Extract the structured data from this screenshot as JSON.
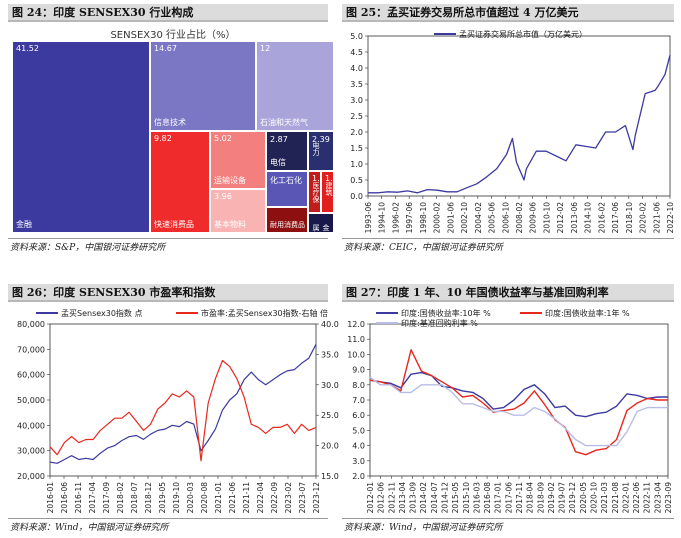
{
  "panels": {
    "p24": {
      "header": "图 24：印度 SENSEX30 行业构成",
      "source": "资料来源：S&P，中国银河证券研究所",
      "chart_data": {
        "type": "treemap",
        "title": "SENSEX30 行业占比（%）",
        "items": [
          {
            "name": "金融",
            "value": "41.52",
            "color": "#3c3a9e"
          },
          {
            "name": "信息技术",
            "value": "14.67",
            "color": "#7b77c4"
          },
          {
            "name": "石油和天然气",
            "value": "12",
            "color": "#a9a5da"
          },
          {
            "name": "快速消费品",
            "value": "9.82",
            "color": "#ef2b2b"
          },
          {
            "name": "运输设备",
            "value": "5.02",
            "color": "#f47f7f"
          },
          {
            "name": "基本物料",
            "value": "3.96",
            "color": "#f9b3b3"
          },
          {
            "name": "电信",
            "value": "2.87",
            "color": "#222355"
          },
          {
            "name": "电力",
            "value": "2.39",
            "color": "#2a2f70"
          },
          {
            "name": "化工石化",
            "value": "",
            "color": "#5a56b5"
          },
          {
            "name": "耐用消费品",
            "value": "",
            "color": "#8e0f0f"
          },
          {
            "name": "医疗保",
            "value": "1…",
            "color": "#c11c1c"
          },
          {
            "name": "建筑",
            "value": "1…",
            "color": "#e21f1f"
          },
          {
            "name": "金属…",
            "value": "",
            "color": "#18184a"
          }
        ]
      }
    },
    "p25": {
      "header": "图 25：孟买证券交易所总市值超过 4 万亿美元",
      "source": "资料来源：CEIC，中国银河证券研究所",
      "chart_data": {
        "type": "line",
        "series": [
          {
            "name": "孟买证券交易所总市值（万亿美元）",
            "color": "#3c3aa0",
            "x": [
              "1993-06",
              "1994-06",
              "1995-06",
              "1996-06",
              "1997-06",
              "1998-06",
              "1999-06",
              "2000-06",
              "2001-06",
              "2002-06",
              "2003-06",
              "2004-06",
              "2005-06",
              "2006-06",
              "2007-06",
              "2008-01",
              "2008-06",
              "2009-03",
              "2009-06",
              "2010-06",
              "2011-06",
              "2012-06",
              "2013-06",
              "2014-06",
              "2015-06",
              "2016-06",
              "2017-06",
              "2018-06",
              "2019-06",
              "2020-03",
              "2020-06",
              "2021-06",
              "2022-06",
              "2022-10",
              "2023-06",
              "2023-12"
            ],
            "values": [
              0.1,
              0.1,
              0.13,
              0.12,
              0.16,
              0.1,
              0.2,
              0.18,
              0.13,
              0.13,
              0.26,
              0.38,
              0.6,
              0.85,
              1.3,
              1.8,
              1.05,
              0.5,
              0.85,
              1.4,
              1.4,
              1.25,
              1.1,
              1.6,
              1.55,
              1.5,
              2.0,
              2.0,
              2.2,
              1.45,
              1.9,
              3.2,
              3.3,
              3.45,
              3.8,
              4.4
            ]
          }
        ],
        "xticks": [
          "1993-06",
          "1994-10",
          "1996-02",
          "1997-06",
          "1998-10",
          "2000-02",
          "2001-06",
          "2002-10",
          "2004-02",
          "2005-06",
          "2006-10",
          "2008-02",
          "2009-06",
          "2010-10",
          "2012-02",
          "2013-06",
          "2014-10",
          "2016-02",
          "2017-06",
          "2018-10",
          "2020-02",
          "2021-06",
          "2022-10"
        ],
        "ylim": [
          0,
          5
        ],
        "yticks": [
          "0.0",
          "0.5",
          "1.0",
          "1.5",
          "2.0",
          "2.5",
          "3.0",
          "3.5",
          "4.0",
          "4.5",
          "5.0"
        ]
      }
    },
    "p26": {
      "header": "图 26：印度 SENSEX30 市盈率和指数",
      "source": "资料来源：Wind，中国银河证券研究所",
      "chart_data": {
        "type": "line",
        "xticks": [
          "2016-01",
          "2016-06",
          "2016-11",
          "2017-04",
          "2017-09",
          "2018-02",
          "2018-07",
          "2018-12",
          "2019-05",
          "2019-10",
          "2020-03",
          "2020-08",
          "2021-01",
          "2021-06",
          "2021-11",
          "2022-04",
          "2022-09",
          "2023-02",
          "2023-07",
          "2023-12"
        ],
        "ylim_left": [
          20000,
          80000
        ],
        "yticks_left": [
          "20,000",
          "30,000",
          "40,000",
          "50,000",
          "60,000",
          "70,000",
          "80,000"
        ],
        "ylim_right": [
          15,
          40
        ],
        "yticks_right": [
          "15.0",
          "20.0",
          "25.0",
          "30.0",
          "35.0",
          "40.0"
        ],
        "series": [
          {
            "name": "孟买Sensex30指数 点",
            "axis": "left",
            "color": "#3c3aa0",
            "values": [
              25500,
              25000,
              26500,
              28000,
              26500,
              27000,
              26500,
              29000,
              31000,
              32000,
              34000,
              35500,
              36000,
              34500,
              36500,
              38000,
              38500,
              40000,
              39500,
              41500,
              40500,
              30000,
              34000,
              38500,
              46000,
              50000,
              52500,
              58000,
              61000,
              58000,
              56000,
              58000,
              60000,
              61500,
              62000,
              64500,
              66500,
              72000
            ]
          },
          {
            "name": "市盈率:孟买Sensex30指数-右轴 倍",
            "axis": "right",
            "color": "#e8271f",
            "values": [
              19.8,
              18.5,
              20.5,
              21.5,
              20.5,
              21.0,
              21.0,
              22.5,
              23.5,
              24.5,
              24.5,
              25.5,
              24.0,
              22.5,
              23.5,
              26.0,
              27.0,
              28.5,
              28.0,
              29.0,
              28.0,
              17.5,
              27.0,
              31.0,
              34.0,
              33.0,
              31.0,
              28.0,
              23.5,
              23.0,
              22.0,
              23.0,
              23.0,
              23.5,
              22.0,
              23.5,
              22.5,
              23.0
            ]
          }
        ]
      }
    },
    "p27": {
      "header": "图 27：印度 1 年、10 年国债收益率与基准回购利率",
      "source": "资料来源：Wind，中国银河证券研究所",
      "chart_data": {
        "type": "line",
        "xticks": [
          "2012-01",
          "2012-06",
          "2012-11",
          "2013-04",
          "2013-09",
          "2014-02",
          "2014-07",
          "2014-12",
          "2015-05",
          "2015-10",
          "2016-03",
          "2016-08",
          "2017-01",
          "2017-06",
          "2017-11",
          "2018-04",
          "2018-09",
          "2019-02",
          "2019-07",
          "2019-12",
          "2020-05",
          "2020-10",
          "2021-03",
          "2021-08",
          "2022-01",
          "2022-06",
          "2022-11",
          "2023-04",
          "2023-09"
        ],
        "ylim": [
          2.0,
          12.0
        ],
        "yticks": [
          "2.0",
          "3.0",
          "4.0",
          "5.0",
          "6.0",
          "7.0",
          "8.0",
          "9.0",
          "10.0",
          "11.0",
          "12.0"
        ],
        "series": [
          {
            "name": "印度:国债收益率:10年 %",
            "color": "#3c3aa0",
            "values": [
              8.3,
              8.2,
              8.1,
              7.8,
              8.7,
              8.8,
              8.6,
              7.9,
              7.8,
              7.6,
              7.5,
              7.1,
              6.4,
              6.5,
              7.0,
              7.7,
              8.0,
              7.4,
              6.5,
              6.6,
              6.0,
              5.9,
              6.1,
              6.2,
              6.6,
              7.4,
              7.3,
              7.1,
              7.2,
              7.2
            ]
          },
          {
            "name": "印度:国债收益率:1年 %",
            "color": "#e8271f",
            "values": [
              8.3,
              8.2,
              8.0,
              7.6,
              10.3,
              8.9,
              8.6,
              8.2,
              7.8,
              7.2,
              7.3,
              6.8,
              6.2,
              6.3,
              6.4,
              6.8,
              7.6,
              6.7,
              5.7,
              5.2,
              3.6,
              3.4,
              3.7,
              3.8,
              4.4,
              6.3,
              6.8,
              7.1,
              7.0,
              7.0
            ]
          },
          {
            "name": "印度:基准回购利率 %",
            "color": "#b9bde6",
            "values": [
              8.5,
              8.0,
              8.0,
              7.5,
              7.5,
              8.0,
              8.0,
              8.0,
              7.5,
              6.75,
              6.75,
              6.5,
              6.25,
              6.25,
              6.0,
              6.0,
              6.5,
              6.25,
              5.75,
              5.15,
              4.4,
              4.0,
              4.0,
              4.0,
              4.0,
              4.9,
              6.25,
              6.5,
              6.5,
              6.5
            ]
          }
        ]
      }
    }
  }
}
